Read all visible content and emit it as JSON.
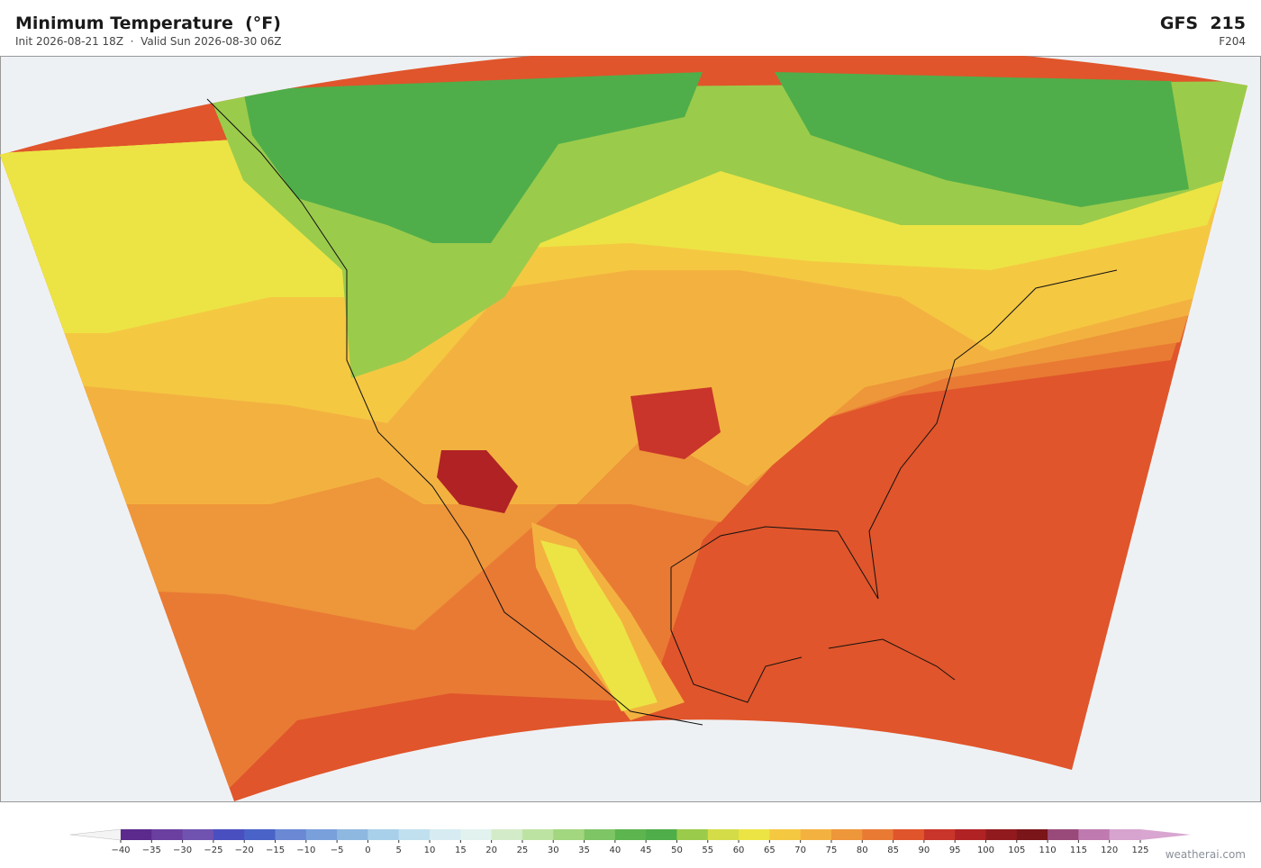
{
  "header": {
    "title": "Minimum Temperature  (°F)",
    "subtitle": "Init 2026-08-21 18Z  ·  Valid Sun 2026-08-30 06Z",
    "model": "GFS  215",
    "forecast_hour": "F204"
  },
  "colorbar": {
    "ticks": [
      {
        "value": -40,
        "label": "−40"
      },
      {
        "value": -35,
        "label": "−35"
      },
      {
        "value": -30,
        "label": "−30"
      },
      {
        "value": -25,
        "label": "−25"
      },
      {
        "value": -20,
        "label": "−20"
      },
      {
        "value": -15,
        "label": "−15"
      },
      {
        "value": -10,
        "label": "−10"
      },
      {
        "value": -5,
        "label": "−5"
      },
      0,
      5,
      10,
      15,
      20,
      25,
      30,
      35,
      40,
      45,
      50,
      55,
      60,
      65,
      70,
      75,
      80,
      85,
      90,
      95,
      100,
      105,
      110,
      115,
      120,
      125
    ],
    "colors": [
      "#5b2a8c",
      "#6b3fa0",
      "#7053b0",
      "#4a4fc0",
      "#4a63c8",
      "#6a88d4",
      "#7aa0dc",
      "#8fb8e0",
      "#a9d0ea",
      "#c0e0ef",
      "#d6ecf2",
      "#e2f2ee",
      "#d3ebc8",
      "#bde3a2",
      "#a2d67f",
      "#7ec565",
      "#5cb54f",
      "#4fae4a",
      "#9bcb4b",
      "#d4dc48",
      "#ece444",
      "#f5c842",
      "#f3b240",
      "#ee963a",
      "#e97a34",
      "#e0552b",
      "#c9352a",
      "#b02224",
      "#911a1e",
      "#7a1519",
      "#9a4a7a",
      "#bf7ab0",
      "#d7a3cf"
    ],
    "under_color": "#f4f4f4",
    "over_color": "#d8a6d0"
  },
  "watermark": "weatherai.com"
}
